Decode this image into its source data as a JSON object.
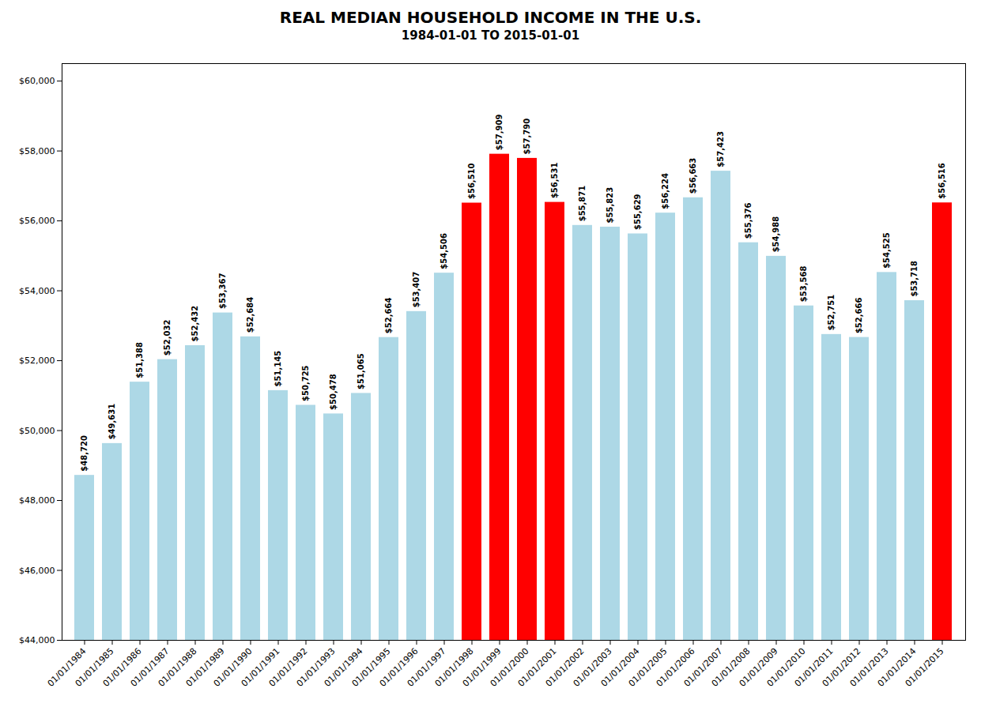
{
  "chart_data": {
    "type": "bar",
    "title": "REAL MEDIAN HOUSEHOLD INCOME IN THE U.S.",
    "subtitle": "1984-01-01 TO 2015-01-01",
    "categories": [
      "01/01/1984",
      "01/01/1985",
      "01/01/1986",
      "01/01/1987",
      "01/01/1988",
      "01/01/1989",
      "01/01/1990",
      "01/01/1991",
      "01/01/1992",
      "01/01/1993",
      "01/01/1994",
      "01/01/1995",
      "01/01/1996",
      "01/01/1997",
      "01/01/1998",
      "01/01/1999",
      "01/01/2000",
      "01/01/2001",
      "01/01/2002",
      "01/01/2003",
      "01/01/2004",
      "01/01/2005",
      "01/01/2006",
      "01/01/2007",
      "01/01/2008",
      "01/01/2009",
      "01/01/2010",
      "01/01/2011",
      "01/01/2012",
      "01/01/2013",
      "01/01/2014",
      "01/01/2015"
    ],
    "values": [
      48720,
      49631,
      51388,
      52032,
      52432,
      53367,
      52684,
      51145,
      50725,
      50478,
      51065,
      52664,
      53407,
      54506,
      56510,
      57909,
      57790,
      56531,
      55871,
      55823,
      55629,
      56224,
      56663,
      57423,
      55376,
      54988,
      53568,
      52751,
      52666,
      54525,
      53718,
      56516
    ],
    "value_labels": [
      "$48,720",
      "$49,631",
      "$51,388",
      "$52,032",
      "$52,432",
      "$53,367",
      "$52,684",
      "$51,145",
      "$50,725",
      "$50,478",
      "$51,065",
      "$52,664",
      "$53,407",
      "$54,506",
      "$56,510",
      "$57,909",
      "$57,790",
      "$56,531",
      "$55,871",
      "$55,823",
      "$55,629",
      "$56,224",
      "$56,663",
      "$57,423",
      "$55,376",
      "$54,988",
      "$53,568",
      "$52,751",
      "$52,666",
      "$54,525",
      "$53,718",
      "$56,516"
    ],
    "colors": [
      "#ADD8E6",
      "#ADD8E6",
      "#ADD8E6",
      "#ADD8E6",
      "#ADD8E6",
      "#ADD8E6",
      "#ADD8E6",
      "#ADD8E6",
      "#ADD8E6",
      "#ADD8E6",
      "#ADD8E6",
      "#ADD8E6",
      "#ADD8E6",
      "#ADD8E6",
      "#FF0000",
      "#FF0000",
      "#FF0000",
      "#FF0000",
      "#ADD8E6",
      "#ADD8E6",
      "#ADD8E6",
      "#ADD8E6",
      "#ADD8E6",
      "#ADD8E6",
      "#ADD8E6",
      "#ADD8E6",
      "#ADD8E6",
      "#ADD8E6",
      "#ADD8E6",
      "#ADD8E6",
      "#ADD8E6",
      "#FF0000"
    ],
    "ylim": [
      44000,
      60500
    ],
    "yticks": [
      {
        "value": 44000,
        "label": "$44,000"
      },
      {
        "value": 46000,
        "label": "$46,000"
      },
      {
        "value": 48000,
        "label": "$48,000"
      },
      {
        "value": 50000,
        "label": "$50,000"
      },
      {
        "value": 52000,
        "label": "$52,000"
      },
      {
        "value": 54000,
        "label": "$54,000"
      },
      {
        "value": 56000,
        "label": "$56,000"
      },
      {
        "value": 58000,
        "label": "$58,000"
      },
      {
        "value": 60000,
        "label": "$60,000"
      }
    ],
    "data_labels": true,
    "grid": false
  }
}
